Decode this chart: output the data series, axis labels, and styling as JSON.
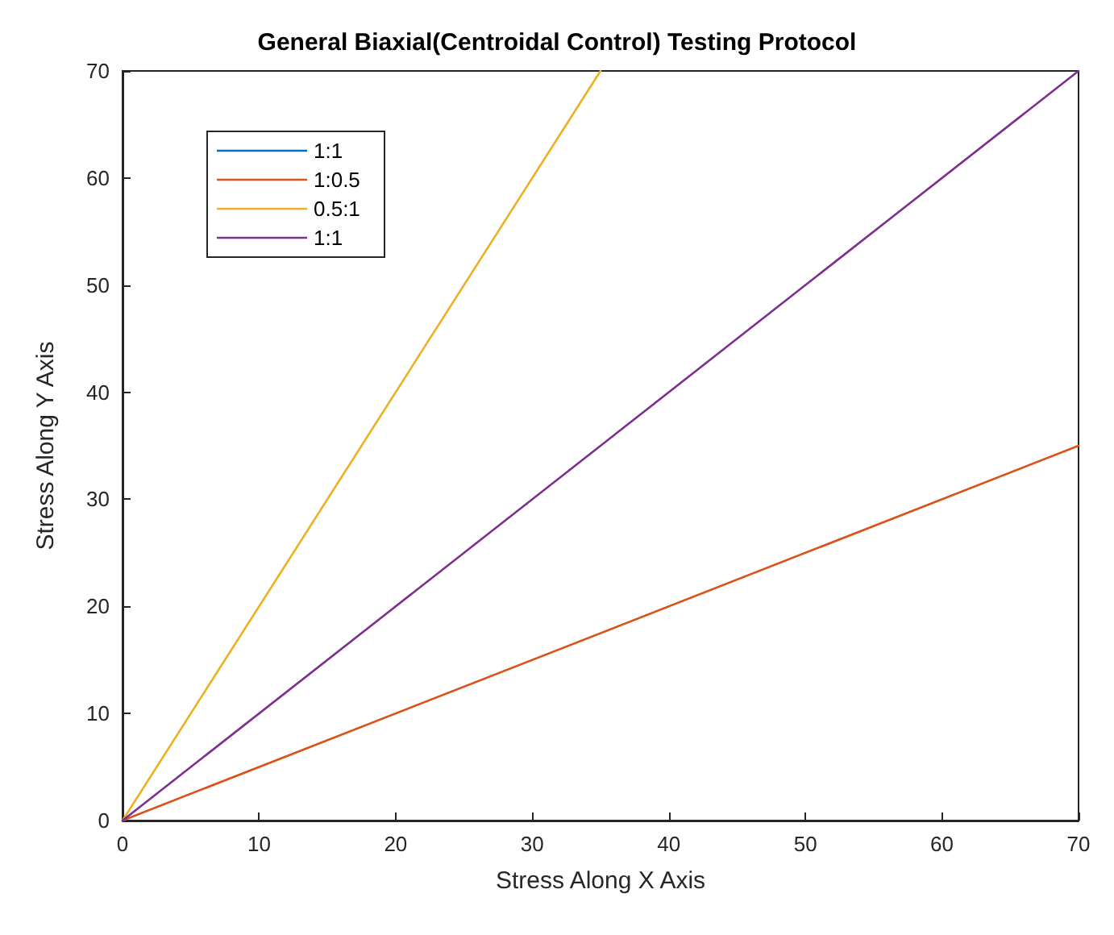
{
  "chart_data": {
    "type": "line",
    "title": "General Biaxial(Centroidal Control) Testing Protocol",
    "xlabel": "Stress Along X Axis",
    "ylabel": "Stress Along Y Axis",
    "series": [
      {
        "name": "1:1",
        "color": "#0072bd"
      },
      {
        "name": "1:0.5",
        "color": "#d95319",
        "x": [
          0,
          70
        ],
        "values": [
          0,
          35
        ]
      },
      {
        "name": "0.5:1",
        "color": "#edb120",
        "x": [
          0,
          35
        ],
        "values": [
          0,
          70
        ]
      },
      {
        "name": "1:1",
        "color": "#7e2f8e",
        "x": [
          0,
          70
        ],
        "values": [
          0,
          70
        ]
      }
    ],
    "xlim": [
      0,
      70
    ],
    "ylim": [
      0,
      70
    ],
    "xticks": [
      0,
      10,
      20,
      30,
      40,
      50,
      60,
      70
    ],
    "yticks": [
      0,
      10,
      20,
      30,
      40,
      50,
      60,
      70
    ],
    "grid": false,
    "legend": "top left",
    "marker": "none",
    "line_style": "solid"
  }
}
